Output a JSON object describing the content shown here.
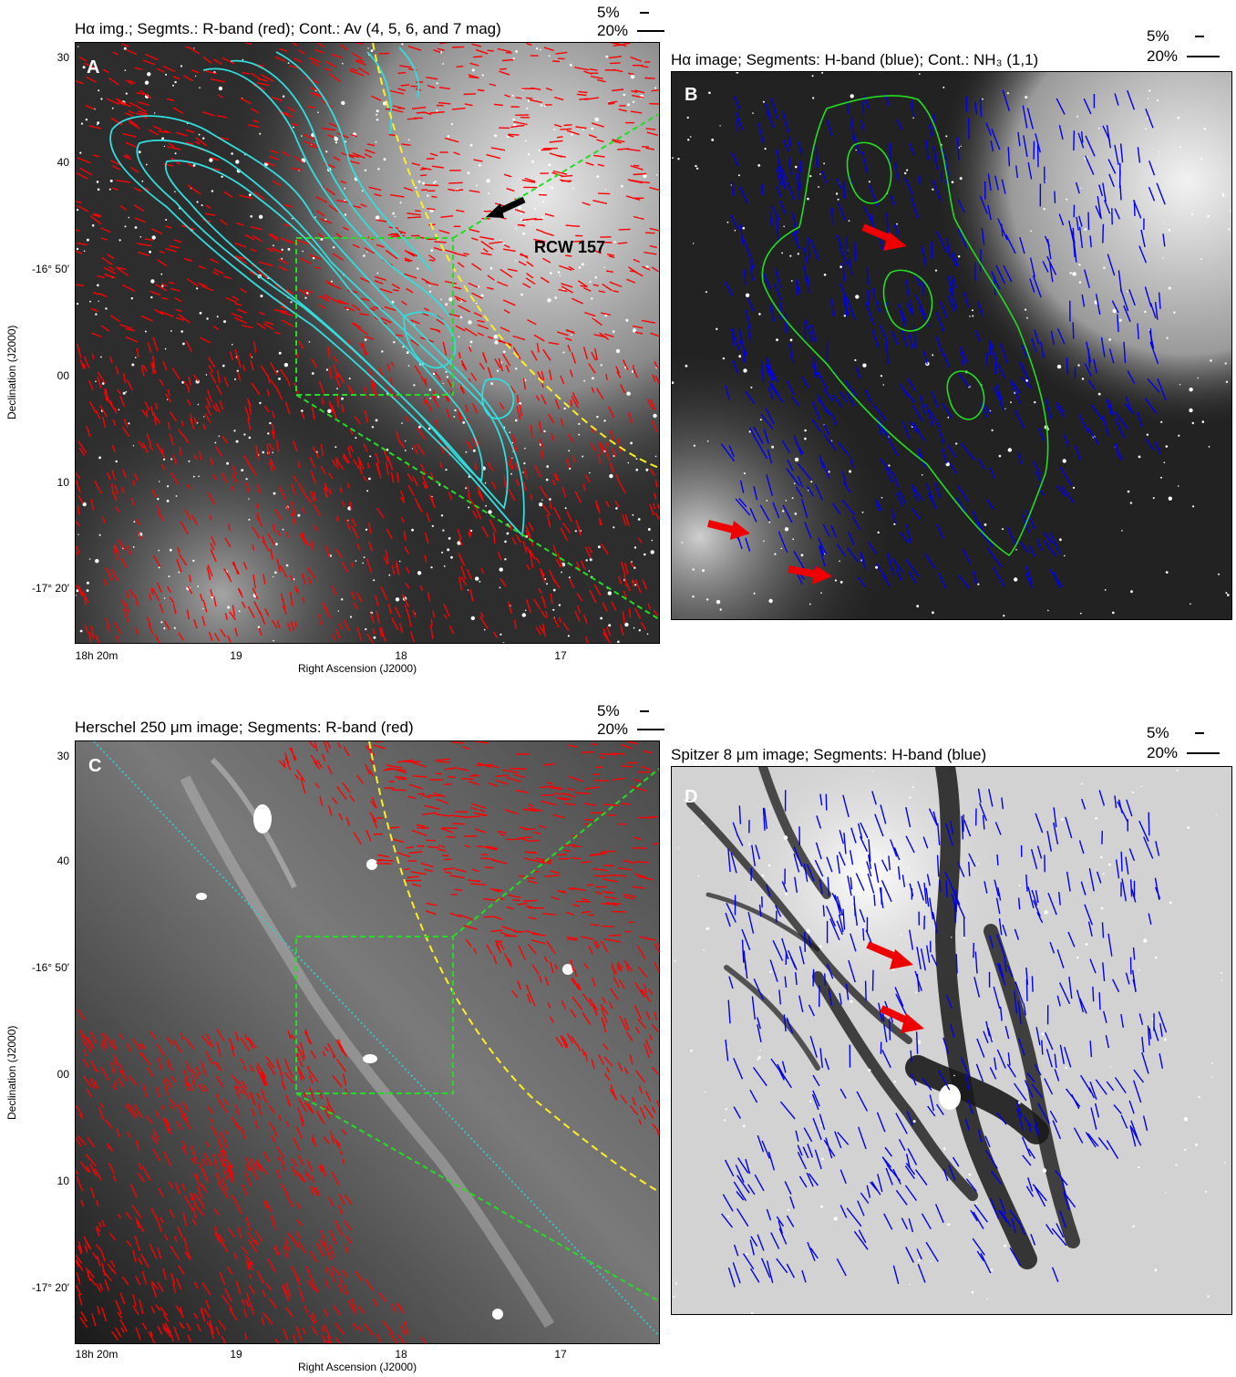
{
  "panels": {
    "A": {
      "letter": "A",
      "title": "Hα img.; Segmts.: R-band (red); Cont.: Av (4, 5, 6, and 7 mag)",
      "annotation": "RCW 157",
      "segment_color": "#ff0000",
      "contour_color": "#33dddd"
    },
    "B": {
      "letter": "B",
      "title": "Hα image; Segments: H-band (blue); Cont.: NH₃ (1,1)",
      "segment_color": "#0000ee",
      "contour_color": "#22dd22"
    },
    "C": {
      "letter": "C",
      "title": "Herschel 250 μm image; Segments: R-band (red)",
      "segment_color": "#ff0000"
    },
    "D": {
      "letter": "D",
      "title": "Spitzer 8 μm image; Segments: H-band (blue)",
      "segment_color": "#0000ee"
    }
  },
  "scale_bar": {
    "small": "5%",
    "large": "20%"
  },
  "axes": {
    "y_label": "Declination (J2000)",
    "x_label": "Right Ascension (J2000)",
    "y_ticks": [
      "30",
      "40",
      "-16° 50′",
      "00",
      "10",
      "-17° 20′"
    ],
    "x_ticks": [
      "18h 20m",
      "19",
      "18",
      "17"
    ]
  },
  "colors": {
    "box": "#22dd22",
    "curve": "#ffee22",
    "filament_line": "#33cccc"
  }
}
